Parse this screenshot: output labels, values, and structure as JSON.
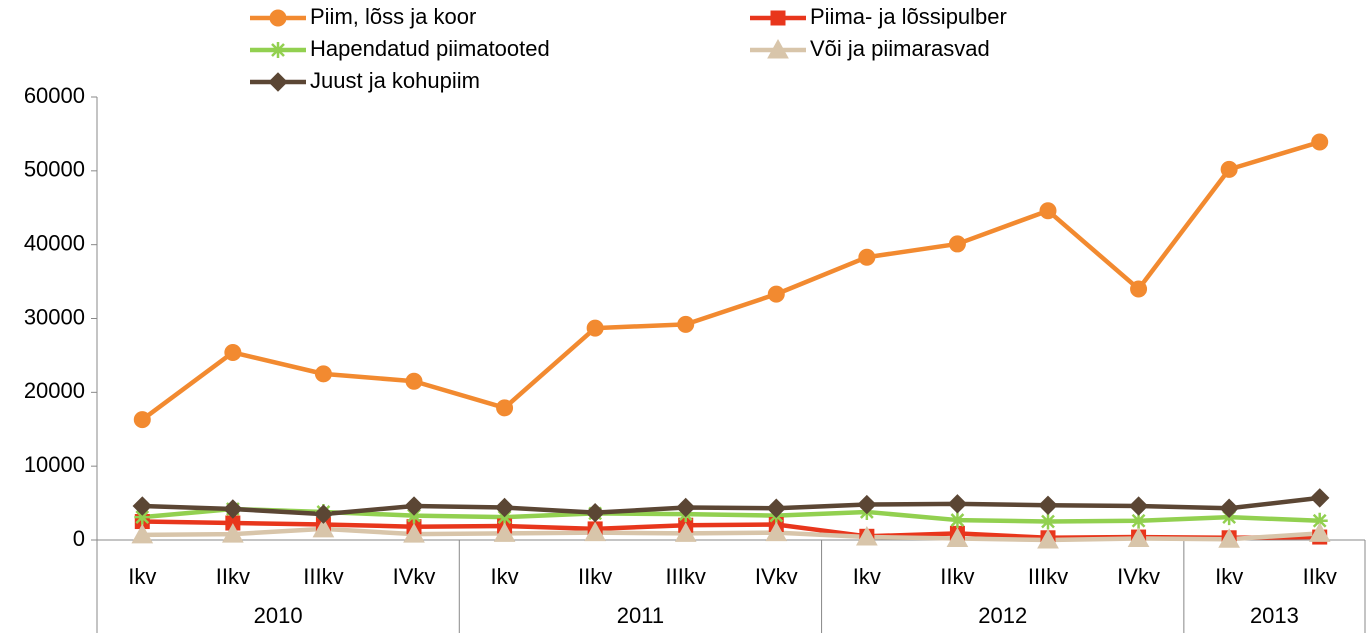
{
  "chart_data": {
    "type": "line",
    "category_groups": [
      {
        "name": "2010",
        "categories": [
          "Ikv",
          "IIkv",
          "IIIkv",
          "IVkv"
        ]
      },
      {
        "name": "2011",
        "categories": [
          "Ikv",
          "IIkv",
          "IIIkv",
          "IVkv"
        ]
      },
      {
        "name": "2012",
        "categories": [
          "Ikv",
          "IIkv",
          "IIIkv",
          "IVkv"
        ]
      },
      {
        "name": "2013",
        "categories": [
          "Ikv",
          "IIkv"
        ]
      }
    ],
    "series": [
      {
        "name": "Piim, lõss ja koor",
        "color": "#f28a30",
        "marker": "circle",
        "values": [
          16300,
          25400,
          22500,
          21500,
          17900,
          28700,
          29200,
          33300,
          38300,
          40100,
          44600,
          34000,
          50200,
          53900
        ]
      },
      {
        "name": "Piima- ja lõssipulber",
        "color": "#e8361c",
        "marker": "square",
        "values": [
          2500,
          2300,
          2100,
          1800,
          1900,
          1500,
          2000,
          2100,
          500,
          900,
          300,
          400,
          300,
          400
        ]
      },
      {
        "name": "Hapendatud piimatooted",
        "color": "#92d050",
        "marker": "star",
        "values": [
          3100,
          4200,
          3800,
          3300,
          3100,
          3600,
          3500,
          3300,
          3800,
          2700,
          2500,
          2600,
          3100,
          2600
        ]
      },
      {
        "name": "Või ja piimarasvad",
        "color": "#d8c5aa",
        "marker": "triangle",
        "values": [
          700,
          800,
          1500,
          800,
          900,
          1000,
          900,
          1000,
          400,
          200,
          0,
          200,
          100,
          900
        ]
      },
      {
        "name": "Juust ja kohupiim",
        "color": "#5b4634",
        "marker": "diamond",
        "values": [
          4600,
          4200,
          3500,
          4600,
          4400,
          3700,
          4400,
          4300,
          4800,
          4900,
          4700,
          4600,
          4300,
          5700
        ]
      }
    ],
    "ylim": [
      0,
      60000
    ],
    "yticks": [
      0,
      10000,
      20000,
      30000,
      40000,
      50000,
      60000
    ],
    "grid": false,
    "legend": "top"
  }
}
